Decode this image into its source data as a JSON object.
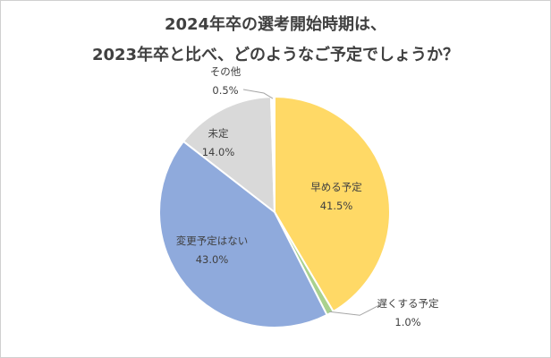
{
  "chart_data": {
    "type": "pie",
    "title_line1": "2024年卒の選考開始時期は、",
    "title_line2": "2023年卒と比べ、どのようなご予定でしょうか？",
    "slices": [
      {
        "label": "早める予定",
        "value": 41.5,
        "value_label": "41.5%",
        "color": "#FFD966"
      },
      {
        "label": "遅くする予定",
        "value": 1.0,
        "value_label": "1.0%",
        "color": "#A9D18E"
      },
      {
        "label": "変更予定はない",
        "value": 43.0,
        "value_label": "43.0%",
        "color": "#8FAADC"
      },
      {
        "label": "未定",
        "value": 14.0,
        "value_label": "14.0%",
        "color": "#D9D9D9"
      },
      {
        "label": "その他",
        "value": 0.5,
        "value_label": "0.5%",
        "color": "#FFFFFF"
      }
    ]
  }
}
